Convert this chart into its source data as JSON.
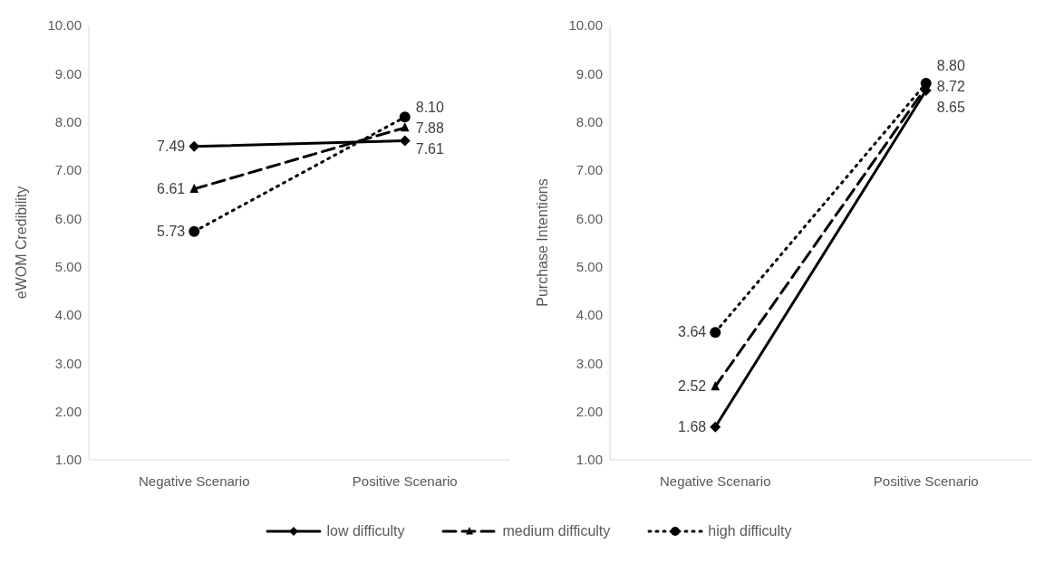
{
  "chart_data": [
    {
      "type": "line",
      "ylabel": "eWOM Credibility",
      "categories": [
        "Negative Scenario",
        "Positive Scenario"
      ],
      "ylim": [
        1,
        10
      ],
      "yticks": [
        {
          "value": 1,
          "label": "1.00"
        },
        {
          "value": 2,
          "label": "2.00"
        },
        {
          "value": 3,
          "label": "3.00"
        },
        {
          "value": 4,
          "label": "4.00"
        },
        {
          "value": 5,
          "label": "5.00"
        },
        {
          "value": 6,
          "label": "6.00"
        },
        {
          "value": 7,
          "label": "7.00"
        },
        {
          "value": 8,
          "label": "8.00"
        },
        {
          "value": 9,
          "label": "9.00"
        },
        {
          "value": 10,
          "label": "10.00"
        }
      ],
      "grid": false,
      "legend": "bottom",
      "series": [
        {
          "name": "low difficulty",
          "color": "#000000",
          "marker": "diamond",
          "line_style": "solid",
          "values": [
            7.49,
            7.61
          ],
          "value_labels": [
            "7.49",
            "7.61"
          ]
        },
        {
          "name": "medium difficulty",
          "color": "#000000",
          "marker": "triangle",
          "line_style": "dashed",
          "values": [
            6.61,
            7.88
          ],
          "value_labels": [
            "6.61",
            "7.88"
          ]
        },
        {
          "name": "high difficulty",
          "color": "#000000",
          "marker": "circle",
          "line_style": "dotted",
          "values": [
            5.73,
            8.1
          ],
          "value_labels": [
            "5.73",
            "8.10"
          ]
        }
      ]
    },
    {
      "type": "line",
      "ylabel": "Purchase Intentions",
      "categories": [
        "Negative Scenario",
        "Positive Scenario"
      ],
      "ylim": [
        1,
        10
      ],
      "yticks": [
        {
          "value": 1,
          "label": "1.00"
        },
        {
          "value": 2,
          "label": "2.00"
        },
        {
          "value": 3,
          "label": "3.00"
        },
        {
          "value": 4,
          "label": "4.00"
        },
        {
          "value": 5,
          "label": "5.00"
        },
        {
          "value": 6,
          "label": "6.00"
        },
        {
          "value": 7,
          "label": "7.00"
        },
        {
          "value": 8,
          "label": "8.00"
        },
        {
          "value": 9,
          "label": "9.00"
        },
        {
          "value": 10,
          "label": "10.00"
        }
      ],
      "grid": false,
      "series": [
        {
          "color": "#000000",
          "marker": "diamond",
          "line_style": "solid",
          "values": [
            1.68,
            8.65
          ],
          "value_labels": [
            "1.68",
            "8.65"
          ]
        },
        {
          "color": "#000000",
          "marker": "triangle",
          "line_style": "dashed",
          "values": [
            2.52,
            8.72
          ],
          "value_labels": [
            "2.52",
            "8.72"
          ]
        },
        {
          "color": "#000000",
          "marker": "circle",
          "line_style": "dotted",
          "values": [
            3.64,
            8.8
          ],
          "value_labels": [
            "3.64",
            "8.80"
          ]
        }
      ]
    }
  ]
}
